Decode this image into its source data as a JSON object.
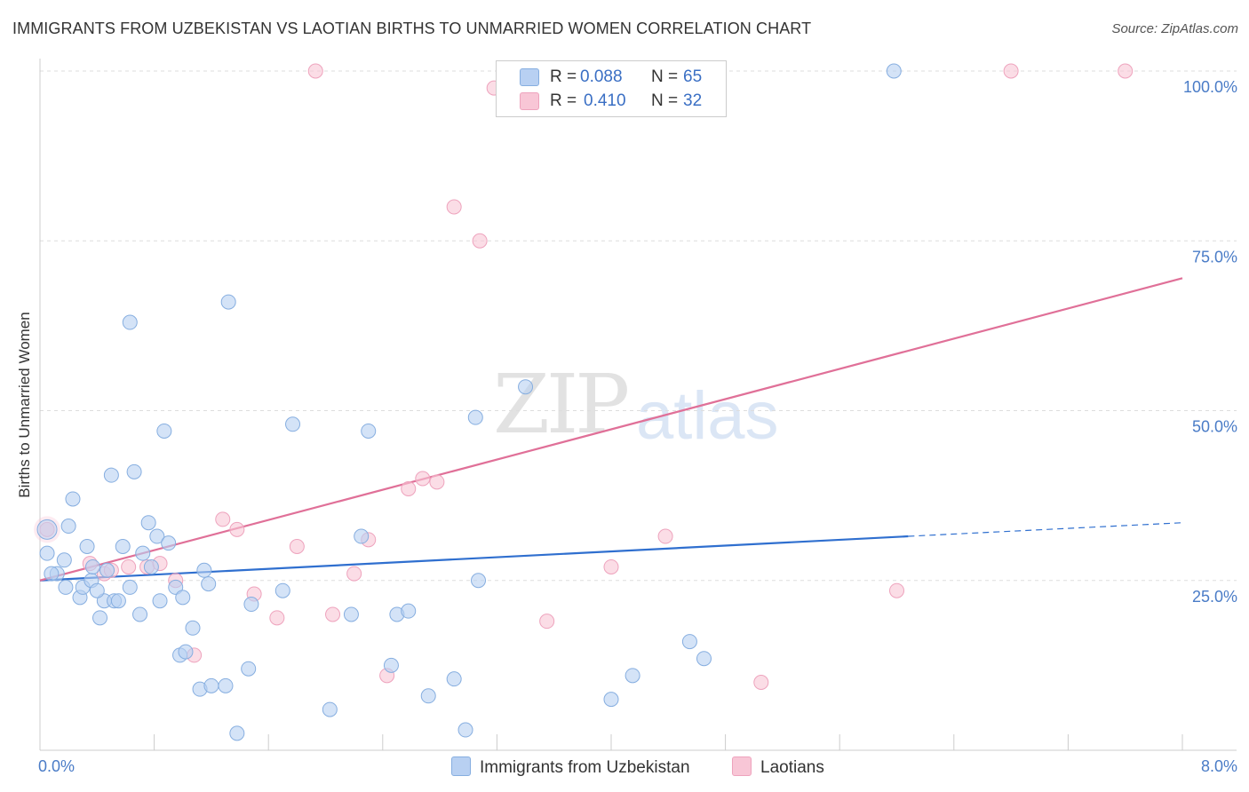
{
  "title": "IMMIGRANTS FROM UZBEKISTAN VS LAOTIAN BIRTHS TO UNMARRIED WOMEN CORRELATION CHART",
  "source": "Source: ZipAtlas.com",
  "watermark": {
    "zip": "ZIP",
    "atlas": "atlas"
  },
  "legend": {
    "r_label": "R =",
    "n_label": "N =",
    "series1": {
      "r": "0.088",
      "n": "65"
    },
    "series2": {
      "r": "0.410",
      "n": "32"
    }
  },
  "colors": {
    "blue_fill": "#b8d0f2",
    "blue_stroke": "#86aee0",
    "blue_line": "#2f6fcf",
    "pink_fill": "#f8c6d6",
    "pink_stroke": "#eea3bd",
    "pink_line": "#e07098"
  },
  "chart_data": {
    "type": "scatter",
    "title": "IMMIGRANTS FROM UZBEKISTAN VS LAOTIAN BIRTHS TO UNMARRIED WOMEN CORRELATION CHART",
    "xlabel": "",
    "ylabel": "Births to Unmarried Women",
    "xlim": [
      0,
      8
    ],
    "ylim": [
      0,
      100
    ],
    "x_tick_labels": [
      "0.0%",
      "8.0%"
    ],
    "y_tick_labels": [
      "100.0%",
      "75.0%",
      "50.0%",
      "25.0%"
    ],
    "y_tick_values": [
      100,
      75,
      50,
      25
    ],
    "series": [
      {
        "name": "Immigrants from Uzbekistan",
        "color": "blue",
        "points": [
          [
            0.05,
            29
          ],
          [
            0.12,
            26
          ],
          [
            0.17,
            28
          ],
          [
            0.18,
            24
          ],
          [
            0.2,
            33
          ],
          [
            0.23,
            37
          ],
          [
            0.28,
            22.5
          ],
          [
            0.3,
            24
          ],
          [
            0.33,
            30
          ],
          [
            0.36,
            25
          ],
          [
            0.37,
            27
          ],
          [
            0.42,
            19.5
          ],
          [
            0.45,
            22
          ],
          [
            0.47,
            26.5
          ],
          [
            0.5,
            40.5
          ],
          [
            0.52,
            22
          ],
          [
            0.55,
            22
          ],
          [
            0.58,
            30
          ],
          [
            0.63,
            24
          ],
          [
            0.63,
            63
          ],
          [
            0.66,
            41
          ],
          [
            0.7,
            20
          ],
          [
            0.72,
            29
          ],
          [
            0.76,
            33.5
          ],
          [
            0.78,
            27
          ],
          [
            0.82,
            31.5
          ],
          [
            0.84,
            22
          ],
          [
            0.87,
            47
          ],
          [
            0.9,
            30.5
          ],
          [
            0.95,
            24
          ],
          [
            0.98,
            14
          ],
          [
            1.0,
            22.5
          ],
          [
            1.02,
            14.5
          ],
          [
            1.07,
            18
          ],
          [
            1.12,
            9
          ],
          [
            1.15,
            26.5
          ],
          [
            1.18,
            24.5
          ],
          [
            1.2,
            9.5
          ],
          [
            1.3,
            9.5
          ],
          [
            1.32,
            66
          ],
          [
            1.38,
            2.5
          ],
          [
            1.46,
            12
          ],
          [
            1.48,
            21.5
          ],
          [
            1.7,
            23.5
          ],
          [
            1.77,
            48
          ],
          [
            2.03,
            6
          ],
          [
            2.18,
            20
          ],
          [
            2.25,
            31.5
          ],
          [
            2.3,
            47
          ],
          [
            2.46,
            12.5
          ],
          [
            2.5,
            20
          ],
          [
            2.58,
            20.5
          ],
          [
            2.72,
            8
          ],
          [
            2.9,
            10.5
          ],
          [
            2.98,
            3
          ],
          [
            3.05,
            49
          ],
          [
            3.07,
            25
          ],
          [
            3.4,
            53.5
          ],
          [
            4.0,
            7.5
          ],
          [
            4.15,
            11
          ],
          [
            4.55,
            16
          ],
          [
            4.65,
            13.5
          ],
          [
            5.98,
            100
          ],
          [
            0.08,
            26
          ],
          [
            0.4,
            23.5
          ]
        ]
      },
      {
        "name": "Laotians",
        "color": "pink",
        "points": [
          [
            0.05,
            32.5
          ],
          [
            0.35,
            27.5
          ],
          [
            0.45,
            26
          ],
          [
            0.62,
            27
          ],
          [
            0.75,
            27
          ],
          [
            0.84,
            27.5
          ],
          [
            0.95,
            25
          ],
          [
            1.08,
            14
          ],
          [
            1.28,
            34
          ],
          [
            1.38,
            32.5
          ],
          [
            1.5,
            23
          ],
          [
            1.66,
            19.5
          ],
          [
            1.8,
            30
          ],
          [
            1.93,
            100
          ],
          [
            2.05,
            20
          ],
          [
            2.2,
            26
          ],
          [
            2.3,
            31
          ],
          [
            2.43,
            11
          ],
          [
            2.58,
            38.5
          ],
          [
            2.68,
            40
          ],
          [
            2.78,
            39.5
          ],
          [
            2.9,
            80
          ],
          [
            3.08,
            75
          ],
          [
            3.18,
            97.5
          ],
          [
            3.55,
            19
          ],
          [
            4.0,
            27
          ],
          [
            4.38,
            31.5
          ],
          [
            5.05,
            10
          ],
          [
            6.0,
            23.5
          ],
          [
            6.8,
            100
          ],
          [
            7.6,
            100
          ],
          [
            0.5,
            26.5
          ]
        ]
      }
    ],
    "trend_lines": [
      {
        "series": "Immigrants from Uzbekistan",
        "x_start": 0,
        "y_start": 25,
        "x_solid_end": 6.08,
        "y_solid_end": 31.5,
        "x_end": 8,
        "y_end": 33.5
      },
      {
        "series": "Laotians",
        "x_start": 0,
        "y_start": 25,
        "x_end": 8,
        "y_end": 69.5
      }
    ],
    "grid": true
  },
  "bottom_legend": {
    "item1": "Immigrants from Uzbekistan",
    "item2": "Laotians"
  }
}
